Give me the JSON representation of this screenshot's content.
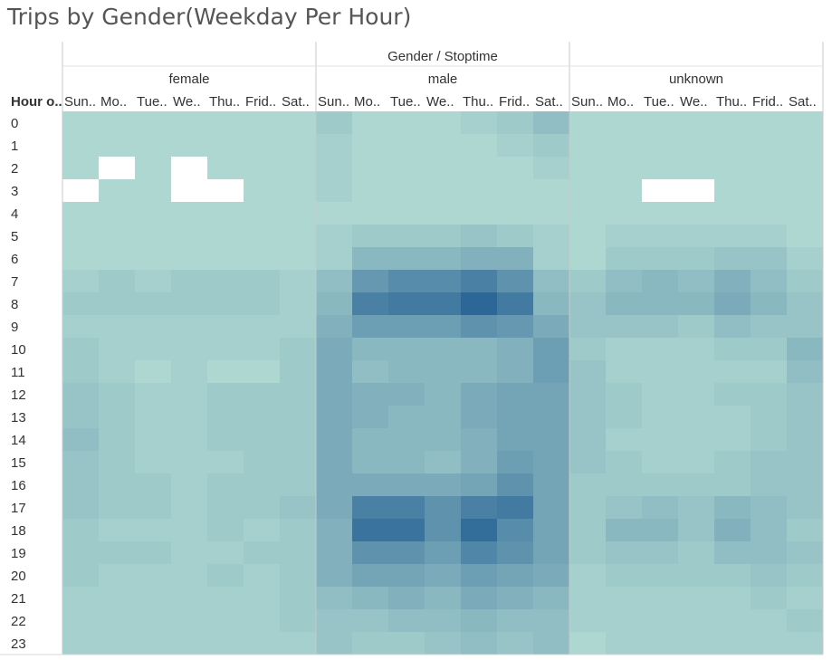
{
  "chart_data": {
    "type": "heatmap",
    "title": "Trips by Gender(Weekday Per Hour)",
    "column_header": "Gender / Stoptime",
    "row_header": "Hour o..",
    "genders": [
      "female",
      "male",
      "unknown"
    ],
    "day_labels": [
      "Sun..",
      "Mo..",
      "Tue..",
      "We..",
      "Thu..",
      "Frid..",
      "Sat.."
    ],
    "hours": [
      "0",
      "1",
      "2",
      "3",
      "4",
      "5",
      "6",
      "7",
      "8",
      "9",
      "10",
      "11",
      "12",
      "13",
      "14",
      "15",
      "16",
      "17",
      "18",
      "19",
      "20",
      "21",
      "22",
      "23"
    ],
    "value_scale": "relative intensity 0 (lightest) to 10 (darkest)",
    "colors": {
      "low": "#bce3d7",
      "high": "#2c6797",
      "divider": "#c8c8c8"
    },
    "series": [
      {
        "name": "female",
        "values": [
          [
            1,
            1,
            1,
            1,
            1,
            1,
            1
          ],
          [
            1,
            1,
            1,
            1,
            1,
            1,
            1
          ],
          [
            1,
            null,
            1,
            null,
            1,
            1,
            1
          ],
          [
            null,
            1,
            1,
            null,
            null,
            1,
            1
          ],
          [
            1,
            1,
            1,
            1,
            1,
            1,
            1
          ],
          [
            1,
            1,
            1,
            1,
            1,
            1,
            1
          ],
          [
            1,
            1,
            1,
            1,
            1,
            1,
            1
          ],
          [
            1.5,
            2,
            1.5,
            2,
            2,
            2,
            1.5
          ],
          [
            2,
            2,
            2,
            2,
            2,
            2,
            1.5
          ],
          [
            1.5,
            1.5,
            1.5,
            1.5,
            1.5,
            1.5,
            1.5
          ],
          [
            2,
            1.5,
            1.5,
            1.5,
            1.5,
            1.5,
            2
          ],
          [
            2,
            1.5,
            1,
            1.5,
            1,
            1,
            2
          ],
          [
            2.5,
            2,
            1.5,
            1.5,
            2,
            2,
            2
          ],
          [
            2.5,
            2,
            1.5,
            1.5,
            2,
            2,
            2
          ],
          [
            3,
            2,
            1.5,
            1.5,
            2,
            2,
            2
          ],
          [
            2.5,
            2,
            1.5,
            1.5,
            1.5,
            2,
            2
          ],
          [
            2.5,
            2,
            2,
            1.5,
            2,
            2,
            2
          ],
          [
            2.5,
            2,
            2,
            1.5,
            2,
            2,
            2.5
          ],
          [
            2,
            1.5,
            1.5,
            1.5,
            2,
            1.5,
            2
          ],
          [
            2,
            2,
            2,
            1.5,
            1.5,
            2,
            2
          ],
          [
            2,
            1.5,
            1.5,
            1.5,
            2,
            1.5,
            2
          ],
          [
            1.5,
            1.5,
            1.5,
            1.5,
            1.5,
            1.5,
            2
          ],
          [
            1.5,
            1.5,
            1.5,
            1.5,
            1.5,
            1.5,
            2
          ],
          [
            1.5,
            1.5,
            1.5,
            1.5,
            1.5,
            1.5,
            1.5
          ]
        ]
      },
      {
        "name": "male",
        "values": [
          [
            2,
            1,
            1,
            1,
            1.5,
            2,
            3
          ],
          [
            1.5,
            1,
            1,
            1,
            1,
            1.5,
            2
          ],
          [
            1.5,
            1,
            1,
            1,
            1,
            1,
            1.5
          ],
          [
            1.5,
            1,
            1,
            1,
            1,
            1,
            1
          ],
          [
            1,
            1,
            1,
            1,
            1,
            1,
            1
          ],
          [
            1.5,
            2,
            2,
            2,
            2.5,
            2,
            1.5
          ],
          [
            1.5,
            3.5,
            3.5,
            3.5,
            4,
            4,
            1.5
          ],
          [
            3,
            6,
            7,
            7,
            8,
            6.5,
            3
          ],
          [
            3.5,
            8,
            8.5,
            8.5,
            10,
            8.5,
            3.5
          ],
          [
            4,
            5.5,
            5.5,
            5.5,
            6.5,
            6,
            4.5
          ],
          [
            4.5,
            3.5,
            3.5,
            3.5,
            3.5,
            4,
            5.5
          ],
          [
            4.5,
            3,
            3.5,
            3.5,
            3.5,
            4,
            5.5
          ],
          [
            4.5,
            4,
            4,
            3.5,
            4.5,
            5,
            5
          ],
          [
            4.5,
            4,
            3.5,
            3.5,
            4.5,
            5,
            5
          ],
          [
            4.5,
            3.5,
            3.5,
            3.5,
            4,
            5,
            5
          ],
          [
            4.5,
            3.5,
            3.5,
            3,
            4,
            5.5,
            5
          ],
          [
            4.5,
            4.5,
            4.5,
            4.5,
            5,
            6.5,
            5
          ],
          [
            4.5,
            8,
            8,
            6.5,
            8,
            8.5,
            5
          ],
          [
            4,
            9,
            9,
            6.5,
            9.5,
            7,
            5
          ],
          [
            4,
            6.5,
            6.5,
            5.5,
            7.5,
            6.5,
            5
          ],
          [
            4,
            5,
            5,
            4.5,
            5.5,
            5,
            4.5
          ],
          [
            3,
            3.5,
            4,
            3.5,
            4.5,
            4,
            3.5
          ],
          [
            2.5,
            2.5,
            3,
            3,
            3.5,
            3,
            3
          ],
          [
            2.5,
            2,
            2,
            2.5,
            3,
            2.5,
            3
          ]
        ]
      },
      {
        "name": "unknown",
        "values": [
          [
            1,
            1,
            1,
            1,
            1,
            1,
            1
          ],
          [
            1,
            1,
            1,
            1,
            1,
            1,
            1
          ],
          [
            1,
            1,
            1,
            1,
            1,
            1,
            1
          ],
          [
            1,
            1,
            null,
            null,
            1,
            1,
            1
          ],
          [
            1,
            1,
            1,
            1,
            1,
            1,
            1
          ],
          [
            1,
            1.5,
            1.5,
            1.5,
            1.5,
            1.5,
            1
          ],
          [
            1,
            2,
            2,
            2,
            2.5,
            2.5,
            1.5
          ],
          [
            2,
            3,
            3.5,
            3,
            4,
            3,
            2
          ],
          [
            2.5,
            3.5,
            3.5,
            3.5,
            4.5,
            3.5,
            2.5
          ],
          [
            2.5,
            2.5,
            2.5,
            2,
            3,
            2.5,
            2.5
          ],
          [
            2,
            1.5,
            1.5,
            1.5,
            2,
            2,
            3.5
          ],
          [
            2.5,
            1.5,
            1.5,
            1.5,
            1.5,
            1.5,
            3
          ],
          [
            2.5,
            2,
            1.5,
            1.5,
            2,
            2,
            2.5
          ],
          [
            2.5,
            2,
            1.5,
            1.5,
            1.5,
            2,
            2.5
          ],
          [
            2.5,
            1.5,
            1.5,
            1.5,
            1.5,
            2,
            2.5
          ],
          [
            2.5,
            2,
            1.5,
            1.5,
            2,
            2.5,
            2.5
          ],
          [
            2,
            2,
            2,
            2,
            2,
            2.5,
            2.5
          ],
          [
            2,
            2.5,
            3,
            2.5,
            3.5,
            3,
            2.5
          ],
          [
            2,
            3.5,
            3.5,
            2.5,
            4,
            3,
            2
          ],
          [
            2,
            2.5,
            2.5,
            2,
            3,
            3,
            2.5
          ],
          [
            1.5,
            2,
            2,
            2,
            2,
            2.5,
            2
          ],
          [
            1.5,
            1.5,
            1.5,
            1.5,
            1.5,
            2,
            1.5
          ],
          [
            1.5,
            1.5,
            1.5,
            1.5,
            1.5,
            1.5,
            2
          ],
          [
            1,
            1.5,
            1.5,
            1.5,
            1.5,
            1.5,
            1.5
          ]
        ]
      }
    ]
  }
}
